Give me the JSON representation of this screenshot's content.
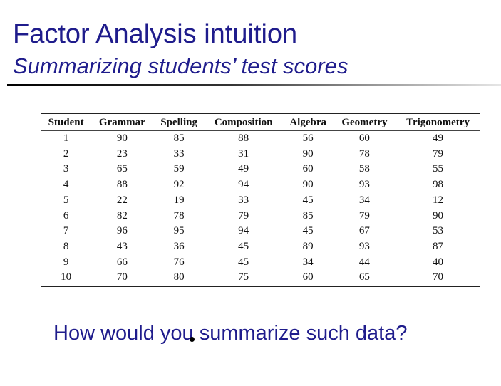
{
  "slide": {
    "title": "Factor Analysis intuition",
    "subtitle": "Summarizing students’ test scores",
    "question": "How would you summarize such data?"
  },
  "table": {
    "headers": [
      "Student",
      "Grammar",
      "Spelling",
      "Composition",
      "Algebra",
      "Geometry",
      "Trigonometry"
    ],
    "rows": [
      [
        "1",
        "90",
        "85",
        "88",
        "56",
        "60",
        "49"
      ],
      [
        "2",
        "23",
        "33",
        "31",
        "90",
        "78",
        "79"
      ],
      [
        "3",
        "65",
        "59",
        "49",
        "60",
        "58",
        "55"
      ],
      [
        "4",
        "88",
        "92",
        "94",
        "90",
        "93",
        "98"
      ],
      [
        "5",
        "22",
        "19",
        "33",
        "45",
        "34",
        "12"
      ],
      [
        "6",
        "82",
        "78",
        "79",
        "85",
        "79",
        "90"
      ],
      [
        "7",
        "96",
        "95",
        "94",
        "45",
        "67",
        "53"
      ],
      [
        "8",
        "43",
        "36",
        "45",
        "89",
        "93",
        "87"
      ],
      [
        "9",
        "66",
        "76",
        "45",
        "34",
        "44",
        "40"
      ],
      [
        "10",
        "70",
        "80",
        "75",
        "60",
        "65",
        "70"
      ]
    ]
  }
}
